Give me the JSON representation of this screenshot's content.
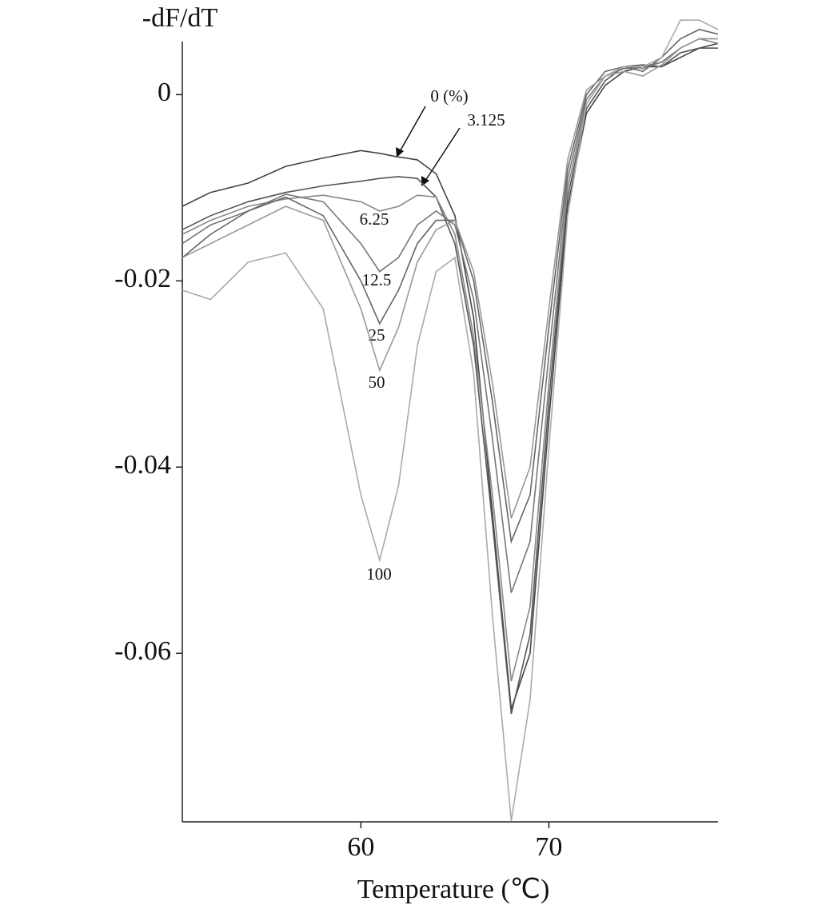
{
  "chart_data": {
    "type": "line",
    "y_label": "-dF/dT",
    "x_label": "Temperature (℃)",
    "x": [
      50.5,
      52,
      54,
      56,
      58,
      60,
      61,
      62,
      63,
      64,
      65,
      66,
      67,
      68,
      69,
      70,
      71,
      72,
      73,
      74,
      75,
      76,
      77,
      78,
      79
    ],
    "xlim": [
      50.5,
      79
    ],
    "xticks": [
      60,
      70
    ],
    "ylim": [
      -0.0781,
      0.0057
    ],
    "yticks": [
      0,
      -0.02,
      -0.04,
      -0.06
    ],
    "series": [
      {
        "name": "0 (%)",
        "color": "#444444",
        "values": [
          -0.012,
          -0.0105,
          -0.0095,
          -0.0077,
          -0.0068,
          -0.006,
          -0.0063,
          -0.0067,
          -0.007,
          -0.0085,
          -0.013,
          -0.024,
          -0.045,
          -0.066,
          -0.06,
          -0.035,
          -0.012,
          -0.002,
          0.001,
          0.0025,
          0.003,
          0.003,
          0.004,
          0.005,
          0.0055
        ]
      },
      {
        "name": "3.125",
        "color": "#555555",
        "values": [
          -0.0145,
          -0.013,
          -0.0115,
          -0.0105,
          -0.0098,
          -0.0093,
          -0.009,
          -0.0088,
          -0.009,
          -0.011,
          -0.016,
          -0.027,
          -0.046,
          -0.0665,
          -0.058,
          -0.033,
          -0.011,
          -0.0015,
          0.0015,
          0.003,
          0.0032,
          0.003,
          0.0045,
          0.005,
          0.005
        ]
      },
      {
        "name": "6.25",
        "color": "#888888",
        "values": [
          -0.015,
          -0.0135,
          -0.012,
          -0.0112,
          -0.0108,
          -0.0115,
          -0.0125,
          -0.012,
          -0.0108,
          -0.011,
          -0.015,
          -0.026,
          -0.043,
          -0.063,
          -0.055,
          -0.031,
          -0.01,
          -0.001,
          0.002,
          0.003,
          0.0028,
          0.0035,
          0.005,
          0.006,
          0.0055
        ]
      },
      {
        "name": "12.5",
        "color": "#777777",
        "values": [
          -0.016,
          -0.014,
          -0.0125,
          -0.0107,
          -0.0115,
          -0.016,
          -0.019,
          -0.0175,
          -0.014,
          -0.0125,
          -0.014,
          -0.022,
          -0.037,
          -0.0535,
          -0.048,
          -0.028,
          -0.009,
          -0.0005,
          0.002,
          0.0028,
          0.003,
          0.0035,
          0.005,
          0.006,
          0.006
        ]
      },
      {
        "name": "25",
        "color": "#666666",
        "values": [
          -0.0175,
          -0.015,
          -0.0125,
          -0.011,
          -0.013,
          -0.02,
          -0.0246,
          -0.021,
          -0.016,
          -0.0135,
          -0.0135,
          -0.02,
          -0.033,
          -0.048,
          -0.043,
          -0.025,
          -0.008,
          0,
          0.0025,
          0.003,
          0.0025,
          0.004,
          0.006,
          0.007,
          0.0065
        ]
      },
      {
        "name": "50",
        "color": "#999999",
        "values": [
          -0.0175,
          -0.016,
          -0.014,
          -0.012,
          -0.0135,
          -0.023,
          -0.0296,
          -0.025,
          -0.018,
          -0.0145,
          -0.0135,
          -0.019,
          -0.031,
          -0.0455,
          -0.04,
          -0.023,
          -0.007,
          0.0005,
          0.002,
          0.0025,
          0.002,
          0.0032,
          0.005,
          0.006,
          0.006
        ]
      },
      {
        "name": "100",
        "color": "#aaaaaa",
        "values": [
          -0.021,
          -0.022,
          -0.018,
          -0.017,
          -0.023,
          -0.043,
          -0.05,
          -0.042,
          -0.027,
          -0.019,
          -0.0175,
          -0.03,
          -0.056,
          -0.078,
          -0.065,
          -0.038,
          -0.013,
          -0.001,
          0.002,
          0.003,
          0.003,
          0.004,
          0.008,
          0.008,
          0.007
        ]
      }
    ]
  }
}
